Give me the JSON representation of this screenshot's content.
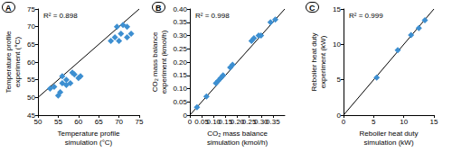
{
  "chart_data": [
    {
      "type": "scatter",
      "title": "A",
      "annotation": "R² = 0.898",
      "x_label": "Temperature profile\nsimulation (°C)",
      "y_label": "Temperature profile\nexperiment (°C)",
      "xlim": [
        50,
        75
      ],
      "xticks": [
        50,
        55,
        60,
        65,
        70,
        75
      ],
      "ylim": [
        45,
        75
      ],
      "yticks": [
        45,
        50,
        55,
        60,
        65,
        70,
        75
      ],
      "grid": false,
      "series": [
        {
          "type": "scatter",
          "marker": "diamond",
          "color": "#3d8fd1",
          "x": [
            53,
            54,
            55,
            55.5,
            56,
            56,
            57,
            57,
            58,
            58.5,
            59,
            60,
            60.5,
            68,
            69,
            69.5,
            70,
            70.5,
            71,
            72,
            72,
            73
          ],
          "values": [
            52.5,
            53,
            50.5,
            51.5,
            54,
            56,
            53.5,
            55,
            54,
            57,
            56.5,
            55.5,
            56,
            66,
            67,
            70,
            66,
            68,
            70.5,
            70,
            67,
            68
          ]
        },
        {
          "type": "line",
          "line_style": "solid",
          "color": "#000000",
          "x": [
            50,
            75
          ],
          "values": [
            50,
            75
          ]
        }
      ]
    },
    {
      "type": "scatter",
      "title": "B",
      "annotation": "R² = 0.998",
      "x_label": "CO₂ mass balance\nsimulation (kmol/h)",
      "y_label": "CO₂ mass balance\nexperiment (kmol/h)",
      "xlim": [
        0,
        0.4
      ],
      "xticks": [
        0,
        0.05,
        {
          "value": 0.1,
          "label": "0.10"
        },
        0.15,
        {
          "value": 0.2,
          "label": "0.20"
        },
        0.25,
        {
          "value": 0.3,
          "label": "0.30"
        },
        0.35,
        {
          "value": 0.4,
          "label": "0.40"
        }
      ],
      "ylim": [
        0,
        0.4
      ],
      "yticks": [
        0,
        0.05,
        {
          "value": 0.1,
          "label": "0.10"
        },
        0.15,
        {
          "value": 0.2,
          "label": "0.20"
        },
        0.25,
        {
          "value": 0.3,
          "label": "0.30"
        },
        0.35,
        {
          "value": 0.4,
          "label": "0.40"
        }
      ],
      "grid": false,
      "series": [
        {
          "type": "scatter",
          "marker": "diamond",
          "color": "#3d8fd1",
          "x": [
            0.03,
            0.07,
            0.11,
            0.12,
            0.13,
            0.14,
            0.17,
            0.18,
            0.26,
            0.27,
            0.29,
            0.3,
            0.34,
            0.36
          ],
          "values": [
            0.03,
            0.07,
            0.12,
            0.13,
            0.14,
            0.15,
            0.18,
            0.19,
            0.28,
            0.29,
            0.3,
            0.3,
            0.35,
            0.36
          ]
        },
        {
          "type": "line",
          "line_style": "solid",
          "color": "#000000",
          "x": [
            0,
            0.4
          ],
          "values": [
            0,
            0.4
          ]
        }
      ]
    },
    {
      "type": "scatter",
      "title": "C",
      "annotation": "R² = 0.999",
      "x_label": "Reboiler heat duty\nsimulation (kW)",
      "y_label": "Reboiler heat duty\nexperiment (kW)",
      "xlim": [
        0,
        15
      ],
      "xticks": [
        0,
        5,
        10,
        15
      ],
      "ylim": [
        0,
        15
      ],
      "yticks": [
        0,
        5,
        10,
        15
      ],
      "grid": false,
      "series": [
        {
          "type": "scatter",
          "marker": "diamond",
          "color": "#3d8fd1",
          "x": [
            5.5,
            9,
            11.2,
            12.5,
            13.5
          ],
          "values": [
            5.3,
            9.2,
            11.3,
            12.3,
            13.4
          ]
        },
        {
          "type": "line",
          "line_style": "solid",
          "color": "#000000",
          "x": [
            0,
            15
          ],
          "values": [
            0,
            15
          ]
        }
      ]
    }
  ]
}
